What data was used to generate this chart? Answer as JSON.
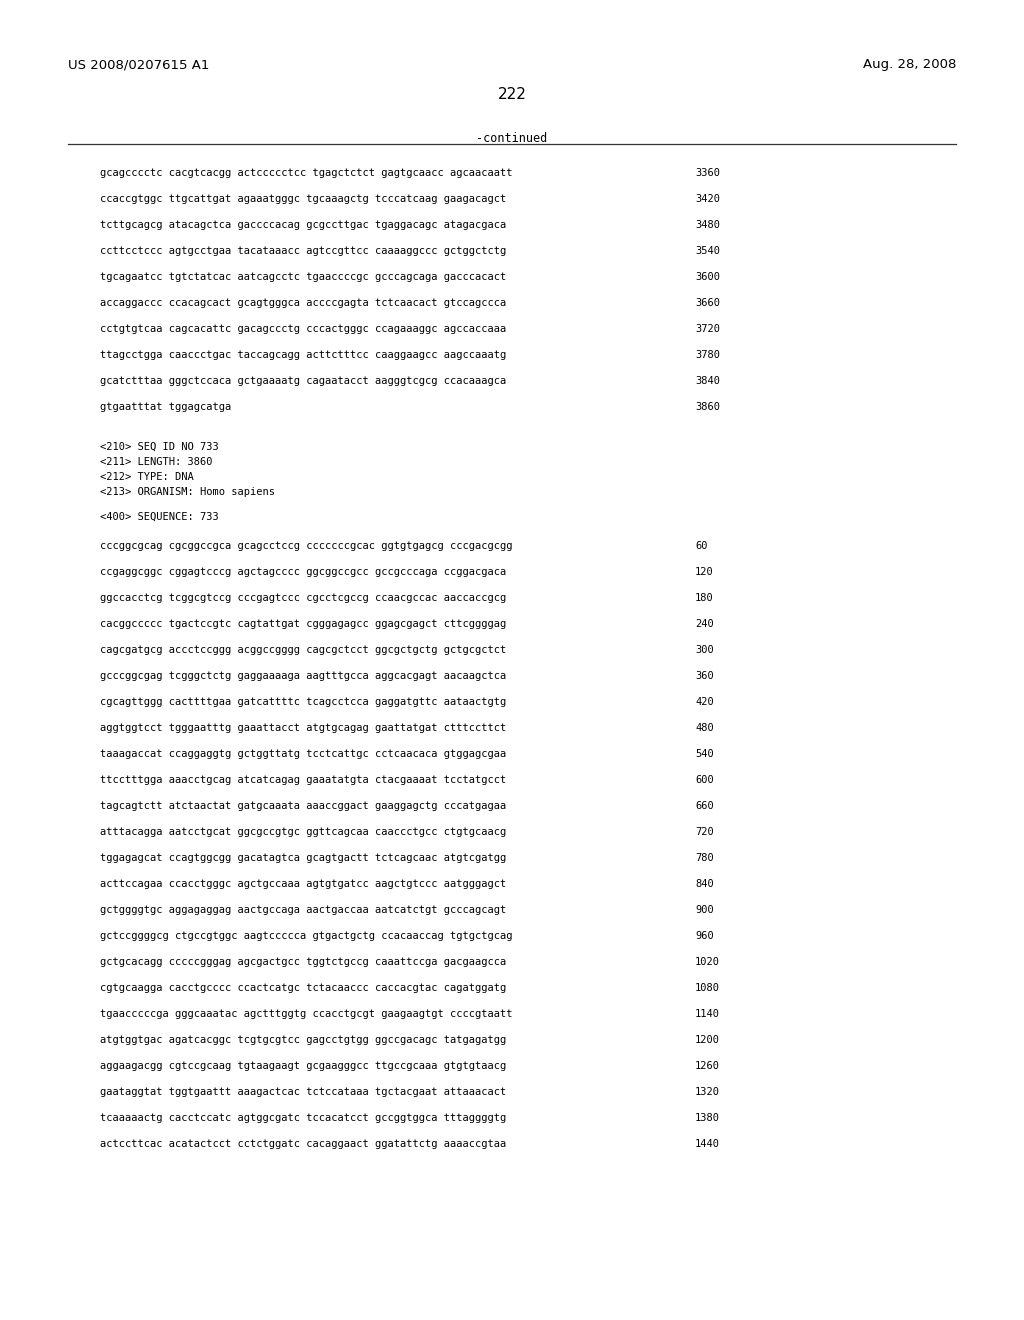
{
  "header_left": "US 2008/0207615 A1",
  "header_right": "Aug. 28, 2008",
  "page_number": "222",
  "continued_label": "-continued",
  "background_color": "#ffffff",
  "text_color": "#000000",
  "mono_font": "DejaVu Sans Mono",
  "sequence_lines_top": [
    [
      "gcagcccctc cacgtcacgg actccccctcc tgagctctct gagtgcaacc agcaacaatt",
      "3360"
    ],
    [
      "ccaccgtggc ttgcattgat agaaatgggc tgcaaagctg tcccatcaag gaagacagct",
      "3420"
    ],
    [
      "tcttgcagcg atacagctca gaccccacag gcgccttgac tgaggacagc atagacgaca",
      "3480"
    ],
    [
      "ccttcctccc agtgcctgaa tacataaacc agtccgttcc caaaaggccc gctggctctg",
      "3540"
    ],
    [
      "tgcagaatcc tgtctatcac aatcagcctc tgaaccccgc gcccagcaga gacccacact",
      "3600"
    ],
    [
      "accaggaccc ccacagcact gcagtgggca accccgagta tctcaacact gtccagccca",
      "3660"
    ],
    [
      "cctgtgtcaa cagcacattc gacagccctg cccactgggc ccagaaaggc agccaccaaa",
      "3720"
    ],
    [
      "ttagcctgga caaccctgac taccagcagg acttctttcc caaggaagcc aagccaaatg",
      "3780"
    ],
    [
      "gcatctttaa gggctccaca gctgaaaatg cagaatacct aagggtcgcg ccacaaagca",
      "3840"
    ],
    [
      "gtgaatttat tggagcatga",
      "3860"
    ]
  ],
  "metadata_lines": [
    "<210> SEQ ID NO 733",
    "<211> LENGTH: 3860",
    "<212> TYPE: DNA",
    "<213> ORGANISM: Homo sapiens",
    "",
    "<400> SEQUENCE: 733"
  ],
  "sequence_lines_bottom": [
    [
      "cccggcgcag cgcggccgca gcagcctccg cccccccgcac ggtgtgagcg cccgacgcgg",
      "60"
    ],
    [
      "ccgaggcggc cggagtcccg agctagcccc ggcggccgcc gccgcccaga ccggacgaca",
      "120"
    ],
    [
      "ggccacctcg tcggcgtccg cccgagtccc cgcctcgccg ccaacgccac aaccaccgcg",
      "180"
    ],
    [
      "cacggccccc tgactccgtc cagtattgat cgggagagcc ggagcgagct cttcggggag",
      "240"
    ],
    [
      "cagcgatgcg accctccggg acggccgggg cagcgctcct ggcgctgctg gctgcgctct",
      "300"
    ],
    [
      "gcccggcgag tcgggctctg gaggaaaaga aagtttgcca aggcacgagt aacaagctca",
      "360"
    ],
    [
      "cgcagttggg cacttttgaa gatcattttc tcagcctcca gaggatgttc aataactgtg",
      "420"
    ],
    [
      "aggtggtcct tgggaatttg gaaattacct atgtgcagag gaattatgat ctttccttct",
      "480"
    ],
    [
      "taaagaccat ccaggaggtg gctggttatg tcctcattgc cctcaacaca gtggagcgaa",
      "540"
    ],
    [
      "ttcctttgga aaacctgcag atcatcagag gaaatatgta ctacgaaaat tcctatgcct",
      "600"
    ],
    [
      "tagcagtctt atctaactat gatgcaaata aaaccggact gaaggagctg cccatgagaa",
      "660"
    ],
    [
      "atttacagga aatcctgcat ggcgccgtgc ggttcagcaa caaccctgcc ctgtgcaacg",
      "720"
    ],
    [
      "tggagagcat ccagtggcgg gacatagtca gcagtgactt tctcagcaac atgtcgatgg",
      "780"
    ],
    [
      "acttccagaa ccacctgggc agctgccaaa agtgtgatcc aagctgtccc aatgggagct",
      "840"
    ],
    [
      "gctggggtgc aggagaggag aactgccaga aactgaccaa aatcatctgt gcccagcagt",
      "900"
    ],
    [
      "gctccggggcg ctgccgtggc aagtccccca gtgactgctg ccacaaccag tgtgctgcag",
      "960"
    ],
    [
      "gctgcacagg cccccgggag agcgactgcc tggtctgccg caaattccga gacgaagcca",
      "1020"
    ],
    [
      "cgtgcaagga cacctgcccc ccactcatgc tctacaaccc caccacgtac cagatggatg",
      "1080"
    ],
    [
      "tgaacccccga gggcaaatac agctttggtg ccacctgcgt gaagaagtgt ccccgtaatt",
      "1140"
    ],
    [
      "atgtggtgac agatcacggc tcgtgcgtcc gagcctgtgg ggccgacagc tatgagatgg",
      "1200"
    ],
    [
      "aggaagacgg cgtccgcaag tgtaagaagt gcgaagggcc ttgccgcaaa gtgtgtaacg",
      "1260"
    ],
    [
      "gaataggtat tggtgaattt aaagactcac tctccataaa tgctacgaat attaaacact",
      "1320"
    ],
    [
      "tcaaaaactg cacctccatc agtggcgatc tccacatcct gccggtggca tttaggggtg",
      "1380"
    ],
    [
      "actccttcac acatactcct cctctggatc cacaggaact ggatattctg aaaaccgtaa",
      "1440"
    ]
  ]
}
